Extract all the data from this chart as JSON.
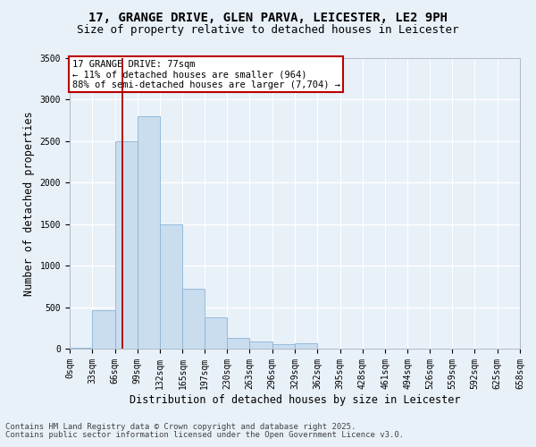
{
  "title_line1": "17, GRANGE DRIVE, GLEN PARVA, LEICESTER, LE2 9PH",
  "title_line2": "Size of property relative to detached houses in Leicester",
  "xlabel": "Distribution of detached houses by size in Leicester",
  "ylabel": "Number of detached properties",
  "bar_color": "#c9ddef",
  "bar_edge_color": "#8ab4d4",
  "background_color": "#e8f0f8",
  "grid_color": "#ffffff",
  "annotation_box_color": "#bb0000",
  "property_line_color": "#aa0000",
  "property_sqm": 77,
  "annotation_line1": "17 GRANGE DRIVE: 77sqm",
  "annotation_line2": "← 11% of detached houses are smaller (964)",
  "annotation_line3": "88% of semi-detached houses are larger (7,704) →",
  "bin_edges": [
    0,
    33,
    66,
    99,
    132,
    165,
    197,
    230,
    263,
    296,
    329,
    362,
    395,
    428,
    461,
    494,
    526,
    559,
    592,
    625,
    658
  ],
  "bin_labels": [
    "0sqm",
    "33sqm",
    "66sqm",
    "99sqm",
    "132sqm",
    "165sqm",
    "197sqm",
    "230sqm",
    "263sqm",
    "296sqm",
    "329sqm",
    "362sqm",
    "395sqm",
    "428sqm",
    "461sqm",
    "494sqm",
    "526sqm",
    "559sqm",
    "592sqm",
    "625sqm",
    "658sqm"
  ],
  "bar_heights": [
    15,
    460,
    2500,
    2800,
    1500,
    720,
    380,
    125,
    85,
    55,
    65,
    0,
    5,
    0,
    0,
    0,
    0,
    0,
    0,
    0
  ],
  "ylim": [
    0,
    3500
  ],
  "yticks": [
    0,
    500,
    1000,
    1500,
    2000,
    2500,
    3000,
    3500
  ],
  "footer_line1": "Contains HM Land Registry data © Crown copyright and database right 2025.",
  "footer_line2": "Contains public sector information licensed under the Open Government Licence v3.0.",
  "title_fontsize": 10,
  "subtitle_fontsize": 9,
  "axis_label_fontsize": 8.5,
  "tick_fontsize": 7,
  "annotation_fontsize": 7.5,
  "footer_fontsize": 6.5
}
